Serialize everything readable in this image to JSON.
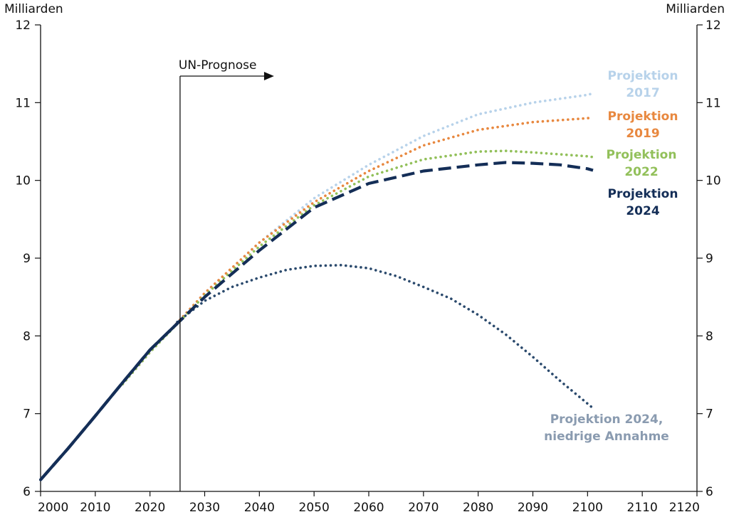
{
  "chart_data": {
    "type": "line",
    "title": "",
    "xlabel": "",
    "ylabel": "Milliarden",
    "y_unit_left": "Milliarden",
    "y_unit_right": "Milliarden",
    "xlim": [
      2000,
      2120
    ],
    "ylim": [
      6,
      12
    ],
    "x_ticks": [
      "2000",
      "2010",
      "2020",
      "2030",
      "2040",
      "2050",
      "2060",
      "2070",
      "2080",
      "2090",
      "2100",
      "2110",
      "2120"
    ],
    "y_ticks": [
      "6",
      "7",
      "8",
      "9",
      "10",
      "11",
      "12"
    ],
    "annotation": {
      "label": "UN-Prognose",
      "x": 2025.5
    },
    "series": [
      {
        "name": "Projektion 2017",
        "label_lines": [
          "Projektion",
          "2017"
        ],
        "color": "#b7d2ea",
        "style": "dotted",
        "x": [
          2015,
          2020,
          2030,
          2040,
          2050,
          2060,
          2070,
          2080,
          2090,
          2100,
          2101
        ],
        "values": [
          7.38,
          7.79,
          8.55,
          9.2,
          9.77,
          10.2,
          10.57,
          10.85,
          11.0,
          11.1,
          11.12
        ]
      },
      {
        "name": "Projektion 2019",
        "label_lines": [
          "Projektion",
          "2019"
        ],
        "color": "#e8883f",
        "style": "dotted",
        "x": [
          2015,
          2020,
          2030,
          2040,
          2050,
          2060,
          2070,
          2080,
          2090,
          2100,
          2101
        ],
        "values": [
          7.38,
          7.79,
          8.55,
          9.2,
          9.72,
          10.12,
          10.45,
          10.65,
          10.75,
          10.8,
          10.81
        ]
      },
      {
        "name": "Projektion 2022",
        "label_lines": [
          "Projektion",
          "2022"
        ],
        "color": "#92c05a",
        "style": "dotted",
        "x": [
          2015,
          2020,
          2030,
          2040,
          2050,
          2060,
          2070,
          2080,
          2085,
          2090,
          2100,
          2101
        ],
        "values": [
          7.38,
          7.79,
          8.52,
          9.15,
          9.68,
          10.05,
          10.27,
          10.37,
          10.38,
          10.36,
          10.31,
          10.3
        ]
      },
      {
        "name": "Projektion 2024",
        "label_lines": [
          "Projektion",
          "2024"
        ],
        "color": "#142e57",
        "style": "dashed",
        "x": [
          2000,
          2005,
          2010,
          2015,
          2020,
          2025,
          2030,
          2040,
          2050,
          2060,
          2070,
          2080,
          2085,
          2090,
          2095,
          2100,
          2101
        ],
        "values": [
          6.15,
          6.55,
          6.97,
          7.4,
          7.82,
          8.16,
          8.5,
          9.1,
          9.65,
          9.96,
          10.12,
          10.2,
          10.23,
          10.22,
          10.2,
          10.15,
          10.13
        ]
      },
      {
        "name": "Projektion 2024, niedrige Annahme",
        "label_lines": [
          "Projektion 2024,",
          "niedrige Annahme"
        ],
        "color": "#2b4a6d",
        "label_color": "#8a9bb0",
        "style": "dotted",
        "x": [
          2025,
          2030,
          2035,
          2040,
          2045,
          2050,
          2055,
          2060,
          2065,
          2070,
          2075,
          2080,
          2085,
          2090,
          2095,
          2101
        ],
        "values": [
          8.18,
          8.45,
          8.63,
          8.75,
          8.85,
          8.9,
          8.91,
          8.87,
          8.77,
          8.63,
          8.48,
          8.27,
          8.02,
          7.73,
          7.42,
          7.07
        ]
      }
    ]
  }
}
